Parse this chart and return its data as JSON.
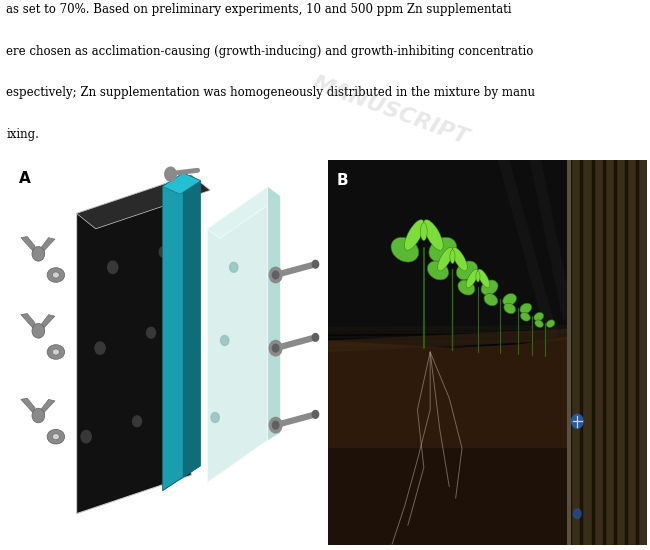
{
  "background_color": "#ffffff",
  "fig_width": 6.5,
  "fig_height": 5.5,
  "dpi": 100,
  "label_A": "A",
  "label_B": "B",
  "label_fontsize": 11,
  "text_lines": [
    "as set to 70%. Based on preliminary experiments, 10 and 500 ppm Zn supplementati",
    "ere chosen as acclimation-causing (growth-inducing) and growth-inhibiting concentratio",
    "espectively; Zn supplementation was homogeneously distributed in the mixture by manu",
    "ixing."
  ],
  "text_fontsize": 8.5,
  "watermark_text": "MANUSCRIPT",
  "black_panel_color": "#111111",
  "teal_color": "#1a9eaf",
  "teal_dark": "#0d6e7a",
  "teal_light": "#25bfd4",
  "glass_color": "#c8e8e4",
  "glass_alpha": 0.65,
  "hardware_color": "#8a8a8a",
  "hardware_dark": "#606060",
  "soil_dark": "#1e1208",
  "soil_mid": "#2e1a0a",
  "soil_light": "#3d2512",
  "plant_green": "#5ab832",
  "plant_dark": "#2e6e10",
  "plant_light": "#7ddd3a",
  "root_color": "#b0a898"
}
